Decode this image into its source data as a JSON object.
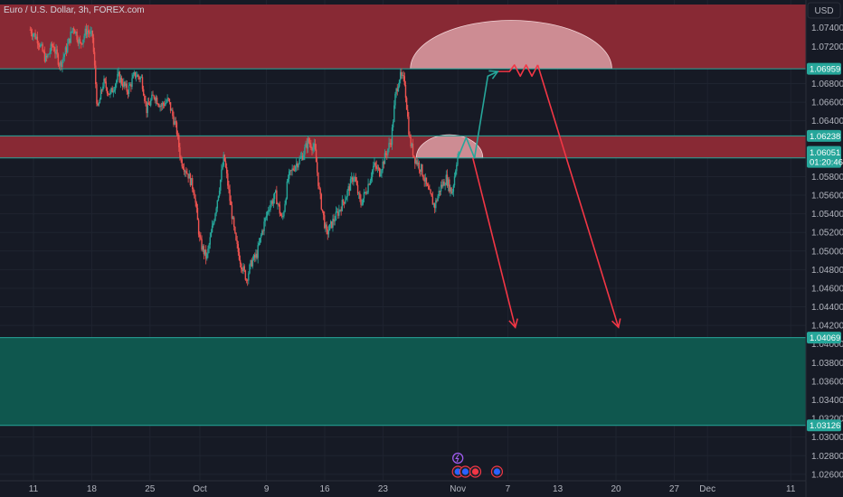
{
  "chart_data": {
    "type": "candlestick",
    "title": "Euro / U.S. Dollar, 3h, FOREX.com",
    "currency": "USD",
    "ylim": [
      1.0255,
      1.0765
    ],
    "y_ticks": [
      1.074,
      1.072,
      1.068,
      1.066,
      1.064,
      1.058,
      1.056,
      1.054,
      1.052,
      1.05,
      1.048,
      1.046,
      1.044,
      1.042,
      1.04,
      1.038,
      1.036,
      1.034,
      1.032,
      1.03,
      1.028,
      1.026
    ],
    "x_ticks": [
      {
        "label": "11",
        "x": 0
      },
      {
        "label": "18",
        "x": 7
      },
      {
        "label": "25",
        "x": 14
      },
      {
        "label": "Oct",
        "x": 20
      },
      {
        "label": "9",
        "x": 28
      },
      {
        "label": "16",
        "x": 35
      },
      {
        "label": "23",
        "x": 42
      },
      {
        "label": "Nov",
        "x": 51
      },
      {
        "label": "7",
        "x": 57
      },
      {
        "label": "13",
        "x": 63
      },
      {
        "label": "20",
        "x": 70
      },
      {
        "label": "27",
        "x": 77
      },
      {
        "label": "Dec",
        "x": 81
      },
      {
        "label": "11",
        "x": 91
      }
    ],
    "price_path": [
      [
        -0.4,
        1.0738
      ],
      [
        0.5,
        1.0728
      ],
      [
        1.5,
        1.0705
      ],
      [
        2.3,
        1.0722
      ],
      [
        3.2,
        1.07
      ],
      [
        4.0,
        1.0718
      ],
      [
        4.8,
        1.0742
      ],
      [
        5.6,
        1.0722
      ],
      [
        6.4,
        1.0738
      ],
      [
        7.1,
        1.073
      ],
      [
        7.7,
        1.065
      ],
      [
        8.4,
        1.0682
      ],
      [
        9.2,
        1.0668
      ],
      [
        10.2,
        1.0688
      ],
      [
        11.3,
        1.0672
      ],
      [
        12.2,
        1.069
      ],
      [
        13.0,
        1.0685
      ],
      [
        13.6,
        1.0652
      ],
      [
        14.5,
        1.0668
      ],
      [
        15.3,
        1.0656
      ],
      [
        16.2,
        1.0662
      ],
      [
        17.2,
        1.063
      ],
      [
        17.7,
        1.0598
      ],
      [
        18.6,
        1.0582
      ],
      [
        19.3,
        1.0565
      ],
      [
        20.0,
        1.051
      ],
      [
        20.8,
        1.0492
      ],
      [
        21.6,
        1.053
      ],
      [
        22.4,
        1.0572
      ],
      [
        22.9,
        1.0602
      ],
      [
        23.6,
        1.0555
      ],
      [
        24.3,
        1.051
      ],
      [
        25.0,
        1.0485
      ],
      [
        25.6,
        1.047
      ],
      [
        26.2,
        1.0488
      ],
      [
        26.8,
        1.0495
      ],
      [
        27.5,
        1.0522
      ],
      [
        28.3,
        1.0548
      ],
      [
        29.1,
        1.056
      ],
      [
        29.9,
        1.0532
      ],
      [
        30.6,
        1.0578
      ],
      [
        31.4,
        1.0592
      ],
      [
        32.2,
        1.06
      ],
      [
        33.0,
        1.0618
      ],
      [
        33.8,
        1.061
      ],
      [
        34.4,
        1.056
      ],
      [
        35.2,
        1.0518
      ],
      [
        36.0,
        1.0532
      ],
      [
        36.8,
        1.0545
      ],
      [
        37.6,
        1.056
      ],
      [
        38.5,
        1.0582
      ],
      [
        39.3,
        1.055
      ],
      [
        40.1,
        1.0568
      ],
      [
        40.9,
        1.0592
      ],
      [
        41.6,
        1.0585
      ],
      [
        42.2,
        1.06
      ],
      [
        43.0,
        1.062
      ],
      [
        43.5,
        1.0668
      ],
      [
        44.0,
        1.0688
      ],
      [
        44.6,
        1.0682
      ],
      [
        45.2,
        1.062
      ],
      [
        45.8,
        1.06
      ],
      [
        46.6,
        1.0588
      ],
      [
        47.4,
        1.0565
      ],
      [
        48.2,
        1.0548
      ],
      [
        48.9,
        1.0568
      ],
      [
        49.6,
        1.0578
      ],
      [
        50.3,
        1.0562
      ],
      [
        50.9,
        1.06
      ],
      [
        51.2,
        1.0605
      ]
    ],
    "zones": [
      {
        "name": "supply-zone-upper",
        "y_from": 1.06959,
        "y_to": 1.0765,
        "color": "#8e2a35"
      },
      {
        "name": "supply-zone-middle",
        "y_from": 1.06001,
        "y_to": 1.06238,
        "color": "#8e2a35"
      },
      {
        "name": "demand-zone",
        "y_from": 1.03126,
        "y_to": 1.04069,
        "color": "#0f5b50"
      }
    ],
    "levels": [
      {
        "name": "level-106959",
        "price": 1.06959,
        "label": "1.06959",
        "color": "#26a69a"
      },
      {
        "name": "level-106238",
        "price": 1.06238,
        "label": "1.06238",
        "color": "#26a69a"
      },
      {
        "name": "level-106001",
        "price": 1.06001,
        "label": "1.06001",
        "color": "#26a69a"
      },
      {
        "name": "level-104069",
        "price": 1.04069,
        "label": "1.04069",
        "color": "#26a69a"
      },
      {
        "name": "level-103126",
        "price": 1.03126,
        "label": "1.03126",
        "color": "#26a69a"
      }
    ],
    "current_price": {
      "price": "1.06051",
      "countdown": "01:20:46",
      "color": "#26a69a"
    },
    "arcs": [
      {
        "name": "arc-large",
        "x_from": 45.3,
        "x_to": 69.5,
        "base_price": 1.06959,
        "peak_price": 1.0748
      },
      {
        "name": "arc-small",
        "x_from": 46.0,
        "x_to": 54.0,
        "base_price": 1.06001,
        "peak_price": 1.0625
      }
    ],
    "paths": [
      {
        "name": "up-path-green",
        "color": "#26a69a",
        "points": [
          [
            51.0,
            1.06
          ],
          [
            52.0,
            1.0622
          ],
          [
            53.0,
            1.06
          ],
          [
            54.6,
            1.0688
          ],
          [
            55.8,
            1.0693
          ]
        ]
      },
      {
        "name": "zigzag-red",
        "color": "#f23645",
        "points": [
          [
            55.8,
            1.0693
          ],
          [
            57.2,
            1.0693
          ],
          [
            57.8,
            1.07
          ],
          [
            58.5,
            1.0688
          ],
          [
            59.2,
            1.07
          ],
          [
            59.9,
            1.0688
          ],
          [
            60.6,
            1.07
          ]
        ]
      },
      {
        "name": "down-path-red-1",
        "color": "#f23645",
        "points": [
          [
            52.8,
            1.06
          ],
          [
            57.9,
            1.0418
          ]
        ]
      },
      {
        "name": "down-path-red-2",
        "color": "#f23645",
        "points": [
          [
            60.6,
            1.07
          ],
          [
            70.3,
            1.0418
          ]
        ]
      }
    ],
    "event_icons": [
      {
        "name": "lightning-event-icon",
        "x": 51.0,
        "row": 0,
        "color": "#a15cf0"
      },
      {
        "name": "economic-event-icon-1",
        "x": 51.0,
        "row": 1,
        "color": "#2962ff"
      },
      {
        "name": "economic-event-icon-2",
        "x": 51.9,
        "row": 1,
        "color": "#2962ff"
      },
      {
        "name": "us-flag-event-icon",
        "x": 53.1,
        "row": 1,
        "color": "#f23645"
      },
      {
        "name": "economic-event-icon-3",
        "x": 55.7,
        "row": 1,
        "color": "#2962ff"
      }
    ]
  }
}
